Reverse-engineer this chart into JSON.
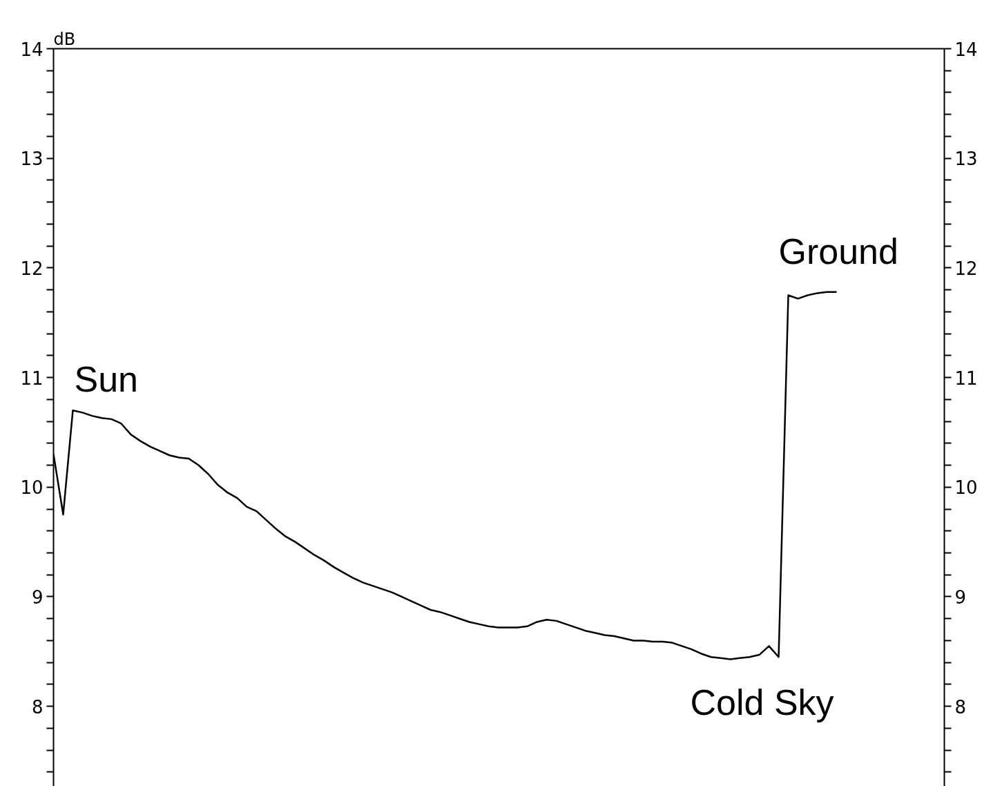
{
  "chart_data": {
    "type": "line",
    "ylabel": "dB",
    "tick_labels": "y",
    "grid": false,
    "marker": "none",
    "line_style": "solid",
    "categories": [
      null,
      null,
      null,
      null,
      null,
      null,
      null,
      null,
      null,
      null,
      null,
      null,
      null,
      null,
      null,
      null,
      null,
      null,
      null,
      null,
      null,
      null,
      null,
      null,
      null,
      null,
      null,
      null,
      null,
      null,
      null,
      null,
      null,
      null,
      null,
      null,
      null,
      null,
      null,
      null,
      null,
      null,
      null,
      null,
      null,
      null,
      null,
      null,
      null,
      null,
      null,
      null,
      null,
      null,
      null,
      null,
      null,
      null,
      null,
      null,
      null,
      null,
      null,
      null,
      null,
      null,
      null,
      null,
      null,
      null,
      null,
      null,
      null,
      null,
      null,
      null,
      null,
      null,
      null,
      null,
      null,
      null,
      null,
      null,
      null,
      null,
      null,
      null,
      null,
      null,
      null,
      null,
      null
    ],
    "series": [
      {
        "color": "#000000",
        "values": [
          10.3,
          9.75,
          10.7,
          10.68,
          10.65,
          10.63,
          10.62,
          10.58,
          10.48,
          10.42,
          10.37,
          10.33,
          10.29,
          10.27,
          10.26,
          10.2,
          10.12,
          10.02,
          9.95,
          9.9,
          9.82,
          9.78,
          9.7,
          9.62,
          9.55,
          9.5,
          9.44,
          9.38,
          9.33,
          9.27,
          9.22,
          9.17,
          9.13,
          9.1,
          9.07,
          9.04,
          9.0,
          8.96,
          8.92,
          8.88,
          8.86,
          8.83,
          8.8,
          8.77,
          8.75,
          8.73,
          8.72,
          8.72,
          8.72,
          8.73,
          8.77,
          8.79,
          8.78,
          8.75,
          8.72,
          8.69,
          8.67,
          8.65,
          8.64,
          8.62,
          8.6,
          8.6,
          8.59,
          8.59,
          8.58,
          8.55,
          8.52,
          8.48,
          8.45,
          8.44,
          8.43,
          8.44,
          8.45,
          8.47,
          8.55,
          8.45,
          11.75,
          11.72,
          11.75,
          11.77,
          11.78,
          11.78,
          null,
          null,
          null,
          null,
          null,
          null,
          null,
          null,
          null,
          null,
          null
        ]
      }
    ],
    "ylim": [
      7.27,
      14
    ],
    "yticks": [
      {
        "value": 7.4,
        "label": null
      },
      {
        "value": 7.6,
        "label": null
      },
      {
        "value": 7.8,
        "label": null
      },
      8,
      {
        "value": 8.2,
        "label": null
      },
      {
        "value": 8.4,
        "label": null
      },
      {
        "value": 8.6,
        "label": null
      },
      {
        "value": 8.8,
        "label": null
      },
      9,
      {
        "value": 9.2,
        "label": null
      },
      {
        "value": 9.4,
        "label": null
      },
      {
        "value": 9.6,
        "label": null
      },
      {
        "value": 9.8,
        "label": null
      },
      10,
      {
        "value": 10.2,
        "label": null
      },
      {
        "value": 10.4,
        "label": null
      },
      {
        "value": 10.6,
        "label": null
      },
      {
        "value": 10.8,
        "label": null
      },
      11,
      {
        "value": 11.2,
        "label": null
      },
      {
        "value": 11.4,
        "label": null
      },
      {
        "value": 11.6,
        "label": null
      },
      {
        "value": 11.8,
        "label": null
      },
      12,
      {
        "value": 12.2,
        "label": null
      },
      {
        "value": 12.4,
        "label": null
      },
      {
        "value": 12.6,
        "label": null
      },
      {
        "value": 12.8,
        "label": null
      },
      13,
      {
        "value": 13.2,
        "label": null
      },
      {
        "value": 13.4,
        "label": null
      },
      {
        "value": 13.6,
        "label": null
      },
      {
        "value": 13.8,
        "label": null
      },
      14
    ],
    "y2lim": [
      7.27,
      14
    ],
    "y2ticks": [
      {
        "value": 7.4,
        "label": null
      },
      {
        "value": 7.6,
        "label": null
      },
      {
        "value": 7.8,
        "label": null
      },
      8,
      {
        "value": 8.2,
        "label": null
      },
      {
        "value": 8.4,
        "label": null
      },
      {
        "value": 8.6,
        "label": null
      },
      {
        "value": 8.8,
        "label": null
      },
      9,
      {
        "value": 9.2,
        "label": null
      },
      {
        "value": 9.4,
        "label": null
      },
      {
        "value": 9.6,
        "label": null
      },
      {
        "value": 9.8,
        "label": null
      },
      10,
      {
        "value": 10.2,
        "label": null
      },
      {
        "value": 10.4,
        "label": null
      },
      {
        "value": 10.6,
        "label": null
      },
      {
        "value": 10.8,
        "label": null
      },
      11,
      {
        "value": 11.2,
        "label": null
      },
      {
        "value": 11.4,
        "label": null
      },
      {
        "value": 11.6,
        "label": null
      },
      {
        "value": 11.8,
        "label": null
      },
      12,
      {
        "value": 12.2,
        "label": null
      },
      {
        "value": 12.4,
        "label": null
      },
      {
        "value": 12.6,
        "label": null
      },
      {
        "value": 12.8,
        "label": null
      },
      13,
      {
        "value": 13.2,
        "label": null
      },
      {
        "value": 13.4,
        "label": null
      },
      {
        "value": 13.6,
        "label": null
      },
      {
        "value": 13.8,
        "label": null
      },
      14
    ],
    "annotations": [
      "Sun",
      "Ground",
      "Cold Sky"
    ]
  }
}
